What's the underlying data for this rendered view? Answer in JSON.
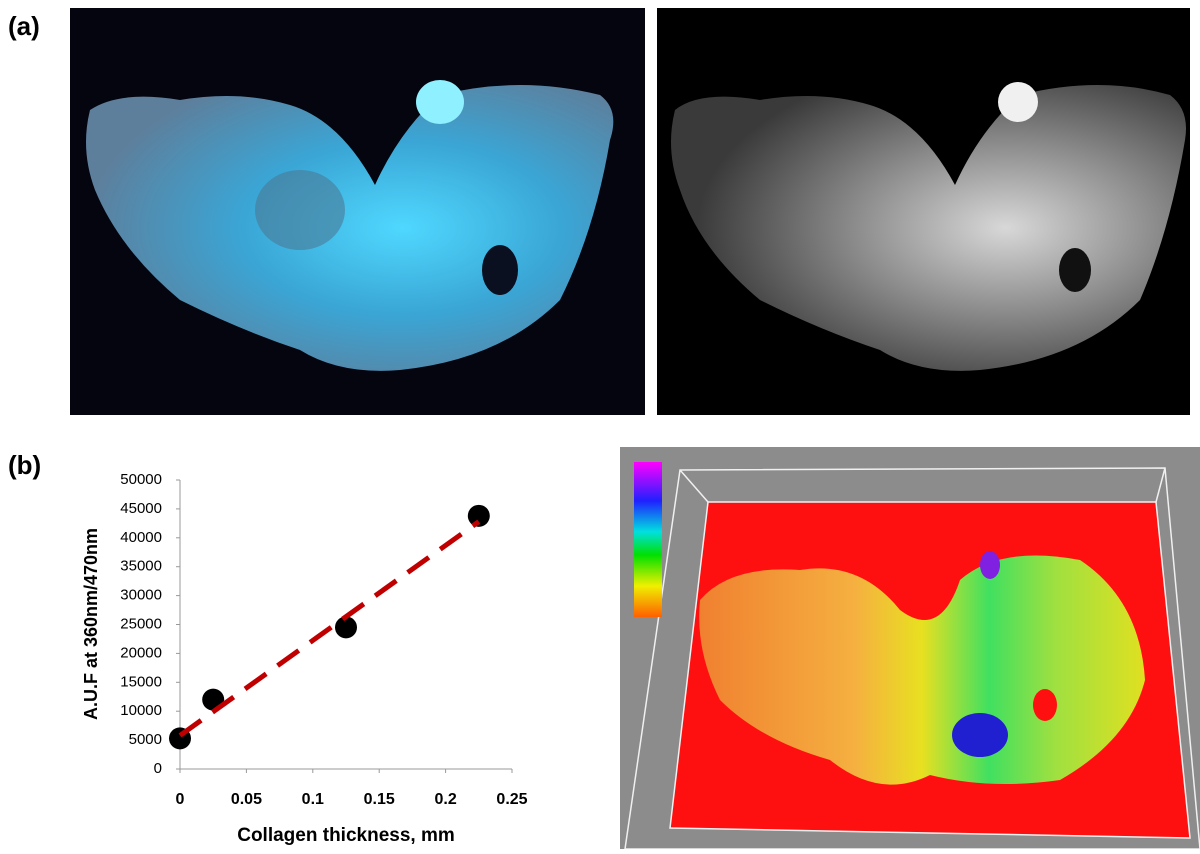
{
  "panel_labels": [
    "(a)",
    "(b)"
  ],
  "chart_data": {
    "type": "scatter",
    "x_label": "Collagen thickness, mm",
    "y_label": "A.U.F at 360nm/470nm",
    "x": [
      0,
      0.025,
      0.125,
      0.225
    ],
    "values": [
      5300,
      12000,
      24500,
      43800
    ],
    "color": "#000000",
    "trend": {
      "x": [
        0,
        0.225
      ],
      "values": [
        5800,
        42800
      ],
      "color": "#c00000"
    },
    "xlim": [
      0,
      0.25
    ],
    "xticks": [
      0,
      0.05,
      0.1,
      0.15,
      0.2,
      0.25
    ],
    "ylim": [
      0,
      50000
    ],
    "yticks": [
      0,
      5000,
      10000,
      15000,
      20000,
      25000,
      30000,
      35000,
      40000,
      45000,
      50000
    ]
  }
}
